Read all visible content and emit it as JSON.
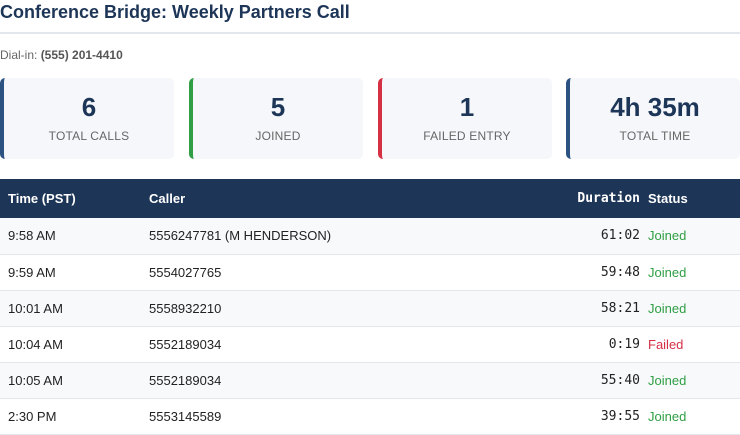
{
  "title": "Conference Bridge: Weekly Partners Call",
  "dialin": {
    "label": "Dial-in:",
    "number": "(555) 201-4410"
  },
  "colors": {
    "primary": "#1d3557",
    "joined": "#2f9e44",
    "failed": "#d63045",
    "accent_blue": "#2c5282"
  },
  "stats": [
    {
      "value": "6",
      "label": "TOTAL CALLS",
      "color": "#2c5282"
    },
    {
      "value": "5",
      "label": "JOINED",
      "color": "#2f9e44"
    },
    {
      "value": "1",
      "label": "FAILED ENTRY",
      "color": "#d63045"
    },
    {
      "value": "4h 35m",
      "label": "TOTAL TIME",
      "color": "#2c5282"
    }
  ],
  "table": {
    "headers": {
      "time": "Time (PST)",
      "caller": "Caller",
      "duration": "Duration",
      "status": "Status"
    },
    "rows": [
      {
        "time": "9:58 AM",
        "caller": "5556247781 (M HENDERSON)",
        "duration": "61:02",
        "status": "Joined"
      },
      {
        "time": "9:59 AM",
        "caller": "5554027765",
        "duration": "59:48",
        "status": "Joined"
      },
      {
        "time": "10:01 AM",
        "caller": "5558932210",
        "duration": "58:21",
        "status": "Joined"
      },
      {
        "time": "10:04 AM",
        "caller": "5552189034",
        "duration": "0:19",
        "status": "Failed"
      },
      {
        "time": "10:05 AM",
        "caller": "5552189034",
        "duration": "55:40",
        "status": "Joined"
      },
      {
        "time": "2:30 PM",
        "caller": "5553145589",
        "duration": "39:55",
        "status": "Joined"
      }
    ]
  }
}
